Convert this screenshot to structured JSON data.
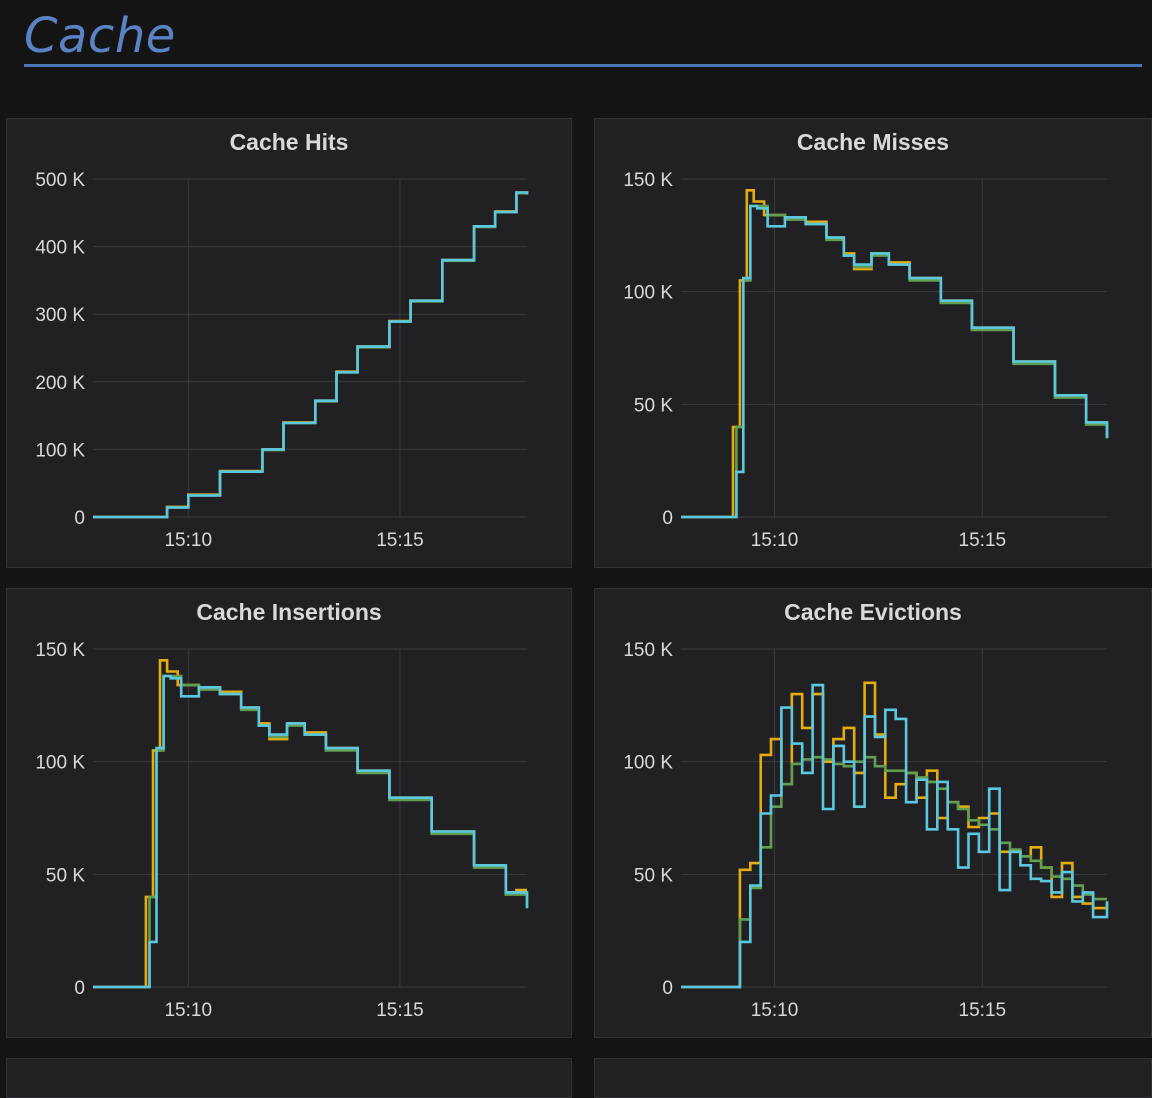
{
  "section": {
    "title": "Cache"
  },
  "colors": {
    "series_a": "#e5ac0e",
    "series_b": "#629e51",
    "series_c": "#5bc8e0",
    "grid": "#3a3a3e"
  },
  "chart_data": [
    {
      "type": "line",
      "title": "Cache Hits",
      "xlim": [
        "15:07:45",
        "15:18:00"
      ],
      "x_ticks": [
        "15:10",
        "15:15"
      ],
      "ylim": [
        0,
        500000
      ],
      "y_ticks": [
        "0",
        "100 K",
        "200 K",
        "300 K",
        "400 K",
        "500 K"
      ],
      "y_tick_values": [
        0,
        100000,
        200000,
        300000,
        400000,
        500000
      ],
      "series": [
        {
          "color": "#e5ac0e",
          "x": [
            "15:07:45",
            "15:08:50",
            "15:09:30",
            "15:10:00",
            "15:10:45",
            "15:11:45",
            "15:12:15",
            "15:13:00",
            "15:13:30",
            "15:14:00",
            "15:14:45",
            "15:15:15",
            "15:16:00",
            "15:16:45",
            "15:17:15",
            "15:17:45",
            "15:18:00"
          ],
          "y": [
            0,
            0,
            15000,
            33000,
            68000,
            100000,
            140000,
            172000,
            215000,
            252000,
            290000,
            320000,
            380000,
            430000,
            452000,
            480000,
            478000
          ]
        },
        {
          "color": "#629e51",
          "x": [
            "15:07:45",
            "15:08:50",
            "15:09:30",
            "15:10:00",
            "15:10:45",
            "15:11:45",
            "15:12:15",
            "15:13:00",
            "15:13:30",
            "15:14:00",
            "15:14:45",
            "15:15:15",
            "15:16:00",
            "15:16:45",
            "15:17:15",
            "15:17:45",
            "15:18:00"
          ],
          "y": [
            0,
            0,
            14000,
            32000,
            67000,
            99000,
            139000,
            171000,
            214000,
            251000,
            289000,
            319000,
            379000,
            429000,
            451000,
            479000,
            477000
          ]
        },
        {
          "color": "#5bc8e0",
          "x": [
            "15:07:45",
            "15:08:50",
            "15:09:30",
            "15:10:00",
            "15:10:45",
            "15:11:45",
            "15:12:15",
            "15:13:00",
            "15:13:30",
            "15:14:00",
            "15:14:45",
            "15:15:15",
            "15:16:00",
            "15:16:45",
            "15:17:15",
            "15:17:45",
            "15:18:00"
          ],
          "y": [
            0,
            0,
            14000,
            32000,
            67000,
            100000,
            139000,
            172000,
            214000,
            252000,
            289000,
            320000,
            380000,
            430000,
            451000,
            480000,
            477000
          ]
        }
      ]
    },
    {
      "type": "line",
      "title": "Cache Misses",
      "xlim": [
        "15:07:45",
        "15:18:00"
      ],
      "x_ticks": [
        "15:10",
        "15:15"
      ],
      "ylim": [
        0,
        150000
      ],
      "y_ticks": [
        "0",
        "50 K",
        "100 K",
        "150 K"
      ],
      "y_tick_values": [
        0,
        50000,
        100000,
        150000
      ],
      "series": [
        {
          "color": "#e5ac0e",
          "x": [
            "15:07:45",
            "15:08:50",
            "15:09:00",
            "15:09:10",
            "15:09:20",
            "15:09:30",
            "15:09:45",
            "15:10:15",
            "15:10:45",
            "15:11:15",
            "15:11:40",
            "15:11:55",
            "15:12:20",
            "15:12:45",
            "15:13:15",
            "15:14:00",
            "15:14:45",
            "15:15:45",
            "15:16:45",
            "15:17:30",
            "15:18:00"
          ],
          "y": [
            0,
            0,
            40000,
            105000,
            145000,
            140000,
            134000,
            133000,
            131000,
            124000,
            117000,
            110000,
            117000,
            113000,
            106000,
            96000,
            84000,
            69000,
            54000,
            42000,
            35000
          ]
        },
        {
          "color": "#629e51",
          "x": [
            "15:07:45",
            "15:08:55",
            "15:09:05",
            "15:09:15",
            "15:09:25",
            "15:09:35",
            "15:09:50",
            "15:10:15",
            "15:10:45",
            "15:11:15",
            "15:11:40",
            "15:11:55",
            "15:12:20",
            "15:12:45",
            "15:13:15",
            "15:14:00",
            "15:14:45",
            "15:15:45",
            "15:16:45",
            "15:17:30",
            "15:18:00"
          ],
          "y": [
            0,
            0,
            40000,
            105000,
            138000,
            138000,
            134000,
            132000,
            130000,
            123000,
            116000,
            111000,
            116000,
            112000,
            105000,
            95000,
            83000,
            68000,
            53000,
            41000,
            35000
          ]
        },
        {
          "color": "#5bc8e0",
          "x": [
            "15:07:45",
            "15:08:55",
            "15:09:05",
            "15:09:15",
            "15:09:25",
            "15:09:35",
            "15:09:50",
            "15:10:15",
            "15:10:45",
            "15:11:15",
            "15:11:40",
            "15:11:55",
            "15:12:20",
            "15:12:45",
            "15:13:15",
            "15:14:00",
            "15:14:45",
            "15:15:45",
            "15:16:45",
            "15:17:30",
            "15:18:00"
          ],
          "y": [
            0,
            0,
            20000,
            106000,
            138000,
            137000,
            129000,
            133000,
            130000,
            124000,
            116000,
            112000,
            117000,
            112000,
            106000,
            96000,
            84000,
            69000,
            54000,
            42000,
            35000
          ]
        }
      ]
    },
    {
      "type": "line",
      "title": "Cache Insertions",
      "xlim": [
        "15:07:45",
        "15:18:00"
      ],
      "x_ticks": [
        "15:10",
        "15:15"
      ],
      "ylim": [
        0,
        150000
      ],
      "y_ticks": [
        "0",
        "50 K",
        "100 K",
        "150 K"
      ],
      "y_tick_values": [
        0,
        50000,
        100000,
        150000
      ],
      "series": [
        {
          "color": "#e5ac0e",
          "x": [
            "15:07:45",
            "15:08:50",
            "15:09:00",
            "15:09:10",
            "15:09:20",
            "15:09:30",
            "15:09:45",
            "15:10:15",
            "15:10:45",
            "15:11:15",
            "15:11:40",
            "15:11:55",
            "15:12:20",
            "15:12:45",
            "15:13:15",
            "15:14:00",
            "15:14:45",
            "15:15:45",
            "15:16:45",
            "15:17:30",
            "15:17:45",
            "15:18:00"
          ],
          "y": [
            0,
            0,
            40000,
            105000,
            145000,
            140000,
            134000,
            133000,
            131000,
            124000,
            117000,
            110000,
            117000,
            113000,
            106000,
            96000,
            84000,
            69000,
            54000,
            42000,
            43000,
            43000
          ]
        },
        {
          "color": "#629e51",
          "x": [
            "15:07:45",
            "15:08:55",
            "15:09:05",
            "15:09:15",
            "15:09:25",
            "15:09:35",
            "15:09:50",
            "15:10:15",
            "15:10:45",
            "15:11:15",
            "15:11:40",
            "15:11:55",
            "15:12:20",
            "15:12:45",
            "15:13:15",
            "15:14:00",
            "15:14:45",
            "15:15:45",
            "15:16:45",
            "15:17:30",
            "15:18:00"
          ],
          "y": [
            0,
            0,
            40000,
            105000,
            138000,
            138000,
            134000,
            132000,
            130000,
            123000,
            116000,
            111000,
            116000,
            112000,
            105000,
            95000,
            83000,
            68000,
            53000,
            41000,
            35000
          ]
        },
        {
          "color": "#5bc8e0",
          "x": [
            "15:07:45",
            "15:08:55",
            "15:09:05",
            "15:09:15",
            "15:09:25",
            "15:09:35",
            "15:09:50",
            "15:10:15",
            "15:10:45",
            "15:11:15",
            "15:11:40",
            "15:11:55",
            "15:12:20",
            "15:12:45",
            "15:13:15",
            "15:14:00",
            "15:14:45",
            "15:15:45",
            "15:16:45",
            "15:17:30",
            "15:18:00"
          ],
          "y": [
            0,
            0,
            20000,
            106000,
            138000,
            137000,
            129000,
            133000,
            130000,
            124000,
            116000,
            112000,
            117000,
            112000,
            106000,
            96000,
            84000,
            69000,
            54000,
            42000,
            35000
          ]
        }
      ]
    },
    {
      "type": "line",
      "title": "Cache Evictions",
      "xlim": [
        "15:07:45",
        "15:18:00"
      ],
      "x_ticks": [
        "15:10",
        "15:15"
      ],
      "ylim": [
        0,
        150000
      ],
      "y_ticks": [
        "0",
        "50 K",
        "100 K",
        "150 K"
      ],
      "y_tick_values": [
        0,
        50000,
        100000,
        150000
      ],
      "series": [
        {
          "color": "#e5ac0e",
          "x": [
            "15:07:45",
            "15:08:55",
            "15:09:10",
            "15:09:25",
            "15:09:40",
            "15:09:55",
            "15:10:10",
            "15:10:25",
            "15:10:40",
            "15:10:55",
            "15:11:10",
            "15:11:25",
            "15:11:40",
            "15:11:55",
            "15:12:10",
            "15:12:25",
            "15:12:40",
            "15:12:55",
            "15:13:10",
            "15:13:25",
            "15:13:40",
            "15:13:55",
            "15:14:10",
            "15:14:25",
            "15:14:40",
            "15:14:55",
            "15:15:10",
            "15:15:25",
            "15:15:40",
            "15:15:55",
            "15:16:10",
            "15:16:25",
            "15:16:40",
            "15:16:55",
            "15:17:10",
            "15:17:25",
            "15:17:40",
            "15:18:00"
          ],
          "y": [
            0,
            0,
            52000,
            55000,
            103000,
            110000,
            90000,
            130000,
            115000,
            130000,
            100000,
            110000,
            115000,
            95000,
            135000,
            112000,
            84000,
            90000,
            95000,
            84000,
            96000,
            75000,
            82000,
            80000,
            71000,
            75000,
            77000,
            60000,
            60000,
            58000,
            62000,
            53000,
            40000,
            55000,
            40000,
            37000,
            35000,
            38000
          ]
        },
        {
          "color": "#629e51",
          "x": [
            "15:07:45",
            "15:08:55",
            "15:09:10",
            "15:09:25",
            "15:09:40",
            "15:09:55",
            "15:10:10",
            "15:10:25",
            "15:10:40",
            "15:10:55",
            "15:11:10",
            "15:11:25",
            "15:11:40",
            "15:11:55",
            "15:12:10",
            "15:12:25",
            "15:12:40",
            "15:12:55",
            "15:13:10",
            "15:13:25",
            "15:13:40",
            "15:13:55",
            "15:14:10",
            "15:14:25",
            "15:14:40",
            "15:14:55",
            "15:15:10",
            "15:15:25",
            "15:15:40",
            "15:15:55",
            "15:16:10",
            "15:16:25",
            "15:16:40",
            "15:16:55",
            "15:17:10",
            "15:17:25",
            "15:17:40",
            "15:18:00"
          ],
          "y": [
            0,
            0,
            30000,
            44000,
            62000,
            80000,
            90000,
            99000,
            101000,
            102000,
            101000,
            99000,
            98000,
            100000,
            102000,
            98000,
            96000,
            96000,
            95000,
            93000,
            91000,
            88000,
            82000,
            79000,
            74000,
            72000,
            70000,
            64000,
            61000,
            58000,
            56000,
            53000,
            49000,
            48000,
            45000,
            41000,
            39000,
            39000
          ]
        },
        {
          "color": "#5bc8e0",
          "x": [
            "15:07:45",
            "15:08:55",
            "15:09:10",
            "15:09:25",
            "15:09:40",
            "15:09:55",
            "15:10:10",
            "15:10:25",
            "15:10:40",
            "15:10:55",
            "15:11:10",
            "15:11:25",
            "15:11:40",
            "15:11:55",
            "15:12:10",
            "15:12:25",
            "15:12:40",
            "15:12:55",
            "15:13:10",
            "15:13:25",
            "15:13:40",
            "15:13:55",
            "15:14:10",
            "15:14:25",
            "15:14:40",
            "15:14:55",
            "15:15:10",
            "15:15:25",
            "15:15:40",
            "15:15:55",
            "15:16:10",
            "15:16:25",
            "15:16:40",
            "15:16:55",
            "15:17:10",
            "15:17:25",
            "15:17:40",
            "15:18:00"
          ],
          "y": [
            0,
            0,
            20000,
            45000,
            77000,
            85000,
            124000,
            108000,
            95000,
            134000,
            79000,
            107000,
            100000,
            80000,
            120000,
            111000,
            123000,
            119000,
            82000,
            92000,
            70000,
            91000,
            70000,
            53000,
            68000,
            60000,
            88000,
            43000,
            60000,
            54000,
            48000,
            47000,
            42000,
            51000,
            38000,
            42000,
            31000,
            38000
          ]
        }
      ]
    }
  ]
}
